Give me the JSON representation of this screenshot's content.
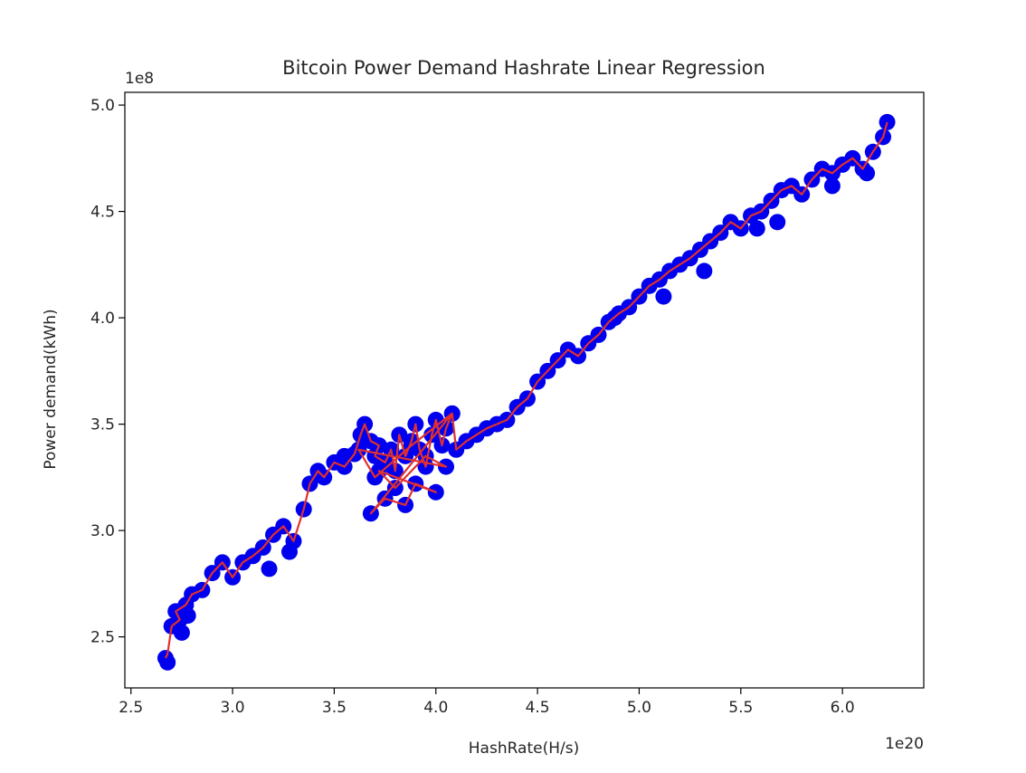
{
  "chart_data": {
    "type": "scatter",
    "title": "Bitcoin Power Demand Hashrate Linear Regression",
    "xlabel": "HashRate(H/s)",
    "ylabel": "Power demand(kWh)",
    "x_offset_label": "1e20",
    "y_offset_label": "1e8",
    "x_unit_multiplier": 1e+20,
    "y_unit_multiplier": 100000000.0,
    "xlim": [
      2.47,
      6.4
    ],
    "ylim": [
      2.26,
      5.06
    ],
    "x_ticks": [
      2.5,
      3.0,
      3.5,
      4.0,
      4.5,
      5.0,
      5.5,
      6.0
    ],
    "x_tick_labels": [
      "2.5",
      "3.0",
      "3.5",
      "4.0",
      "4.5",
      "5.0",
      "5.5",
      "6.0"
    ],
    "y_ticks": [
      2.5,
      3.0,
      3.5,
      4.0,
      4.5,
      5.0
    ],
    "y_tick_labels": [
      "2.5",
      "3.0",
      "3.5",
      "4.0",
      "4.5",
      "5.0"
    ],
    "grid": false,
    "series": [
      {
        "marker": "circle",
        "color": "#0000ee",
        "x": [
          2.67,
          2.68,
          2.7,
          2.72,
          2.74,
          2.77,
          2.8,
          2.85,
          2.9,
          2.95,
          3.0,
          3.05,
          3.1,
          3.15,
          3.2,
          3.25,
          3.3,
          3.35,
          3.38,
          3.42,
          3.45,
          3.5,
          3.55,
          3.6,
          3.63,
          3.65,
          3.68,
          3.7,
          3.72,
          3.75,
          3.78,
          3.8,
          3.82,
          3.85,
          3.88,
          3.9,
          3.92,
          3.95,
          3.98,
          4.0,
          4.03,
          4.05,
          4.08,
          4.1,
          4.15,
          4.2,
          4.25,
          4.3,
          4.35,
          4.4,
          4.45,
          4.5,
          4.55,
          4.6,
          4.65,
          4.7,
          4.75,
          4.8,
          4.85,
          4.9,
          4.95,
          5.0,
          5.05,
          5.1,
          5.15,
          5.2,
          5.25,
          5.3,
          5.35,
          5.4,
          5.45,
          5.5,
          5.55,
          5.6,
          5.65,
          5.7,
          5.75,
          5.8,
          5.85,
          5.9,
          5.95,
          6.0,
          6.05,
          6.1,
          6.15,
          6.2,
          6.22,
          3.68,
          3.75,
          3.85,
          3.9,
          4.0,
          3.72,
          3.8,
          3.95,
          4.05,
          3.62,
          3.7,
          3.88,
          4.08,
          2.75,
          2.78,
          3.18,
          3.28,
          3.55,
          4.45,
          4.88,
          5.12,
          5.32,
          5.58,
          5.68,
          5.95,
          6.12
        ],
        "y": [
          2.4,
          2.38,
          2.55,
          2.62,
          2.58,
          2.65,
          2.7,
          2.72,
          2.8,
          2.85,
          2.78,
          2.85,
          2.88,
          2.92,
          2.98,
          3.02,
          2.95,
          3.1,
          3.22,
          3.28,
          3.25,
          3.32,
          3.3,
          3.36,
          3.45,
          3.5,
          3.42,
          3.35,
          3.4,
          3.32,
          3.38,
          3.28,
          3.45,
          3.35,
          3.42,
          3.5,
          3.38,
          3.3,
          3.45,
          3.52,
          3.4,
          3.48,
          3.55,
          3.38,
          3.42,
          3.45,
          3.48,
          3.5,
          3.52,
          3.58,
          3.62,
          3.7,
          3.75,
          3.8,
          3.85,
          3.82,
          3.88,
          3.92,
          3.98,
          4.02,
          4.05,
          4.1,
          4.15,
          4.18,
          4.22,
          4.25,
          4.28,
          4.32,
          4.36,
          4.4,
          4.45,
          4.42,
          4.48,
          4.5,
          4.55,
          4.6,
          4.62,
          4.58,
          4.65,
          4.7,
          4.68,
          4.72,
          4.75,
          4.7,
          4.78,
          4.85,
          4.92,
          3.08,
          3.15,
          3.12,
          3.22,
          3.18,
          3.28,
          3.2,
          3.35,
          3.3,
          3.38,
          3.25,
          3.4,
          3.55,
          2.52,
          2.6,
          2.82,
          2.9,
          3.35,
          3.62,
          4.0,
          4.1,
          4.22,
          4.42,
          4.45,
          4.62,
          4.68
        ]
      },
      {
        "marker": "line",
        "color": "#e03030",
        "x": [
          2.67,
          2.68,
          2.7,
          2.74,
          2.72,
          2.77,
          2.8,
          2.85,
          2.9,
          2.95,
          3.0,
          3.05,
          3.1,
          3.15,
          3.2,
          3.25,
          3.3,
          3.35,
          3.38,
          3.42,
          3.45,
          3.5,
          3.55,
          3.6,
          3.63,
          3.65,
          3.68,
          3.72,
          3.7,
          3.75,
          3.78,
          3.8,
          3.82,
          3.85,
          3.88,
          3.9,
          3.92,
          3.95,
          3.98,
          4.0,
          4.03,
          4.05,
          4.08,
          3.68,
          3.75,
          3.85,
          3.9,
          4.0,
          3.72,
          3.8,
          3.95,
          4.05,
          3.62,
          3.7,
          3.88,
          4.08,
          4.1,
          4.15,
          4.2,
          4.25,
          4.3,
          4.35,
          4.4,
          4.45,
          4.5,
          4.55,
          4.6,
          4.65,
          4.7,
          4.75,
          4.8,
          4.85,
          4.9,
          4.95,
          5.0,
          5.05,
          5.1,
          5.15,
          5.2,
          5.25,
          5.3,
          5.35,
          5.4,
          5.45,
          5.5,
          5.55,
          5.6,
          5.65,
          5.7,
          5.75,
          5.8,
          5.85,
          5.9,
          5.95,
          6.0,
          6.05,
          6.1,
          6.15,
          6.2,
          6.22
        ],
        "y": [
          2.4,
          2.42,
          2.55,
          2.58,
          2.62,
          2.65,
          2.7,
          2.72,
          2.8,
          2.85,
          2.78,
          2.85,
          2.88,
          2.92,
          2.98,
          3.02,
          2.95,
          3.1,
          3.22,
          3.28,
          3.25,
          3.32,
          3.3,
          3.36,
          3.45,
          3.5,
          3.42,
          3.4,
          3.35,
          3.32,
          3.38,
          3.28,
          3.45,
          3.35,
          3.42,
          3.5,
          3.38,
          3.3,
          3.45,
          3.52,
          3.4,
          3.48,
          3.55,
          3.08,
          3.15,
          3.12,
          3.22,
          3.18,
          3.28,
          3.2,
          3.35,
          3.3,
          3.38,
          3.25,
          3.4,
          3.55,
          3.38,
          3.42,
          3.45,
          3.48,
          3.5,
          3.52,
          3.58,
          3.62,
          3.7,
          3.75,
          3.8,
          3.85,
          3.82,
          3.88,
          3.92,
          3.98,
          4.02,
          4.05,
          4.1,
          4.15,
          4.18,
          4.22,
          4.25,
          4.28,
          4.32,
          4.36,
          4.4,
          4.45,
          4.42,
          4.48,
          4.5,
          4.55,
          4.6,
          4.62,
          4.58,
          4.65,
          4.7,
          4.68,
          4.72,
          4.75,
          4.7,
          4.78,
          4.85,
          4.92
        ]
      }
    ]
  }
}
